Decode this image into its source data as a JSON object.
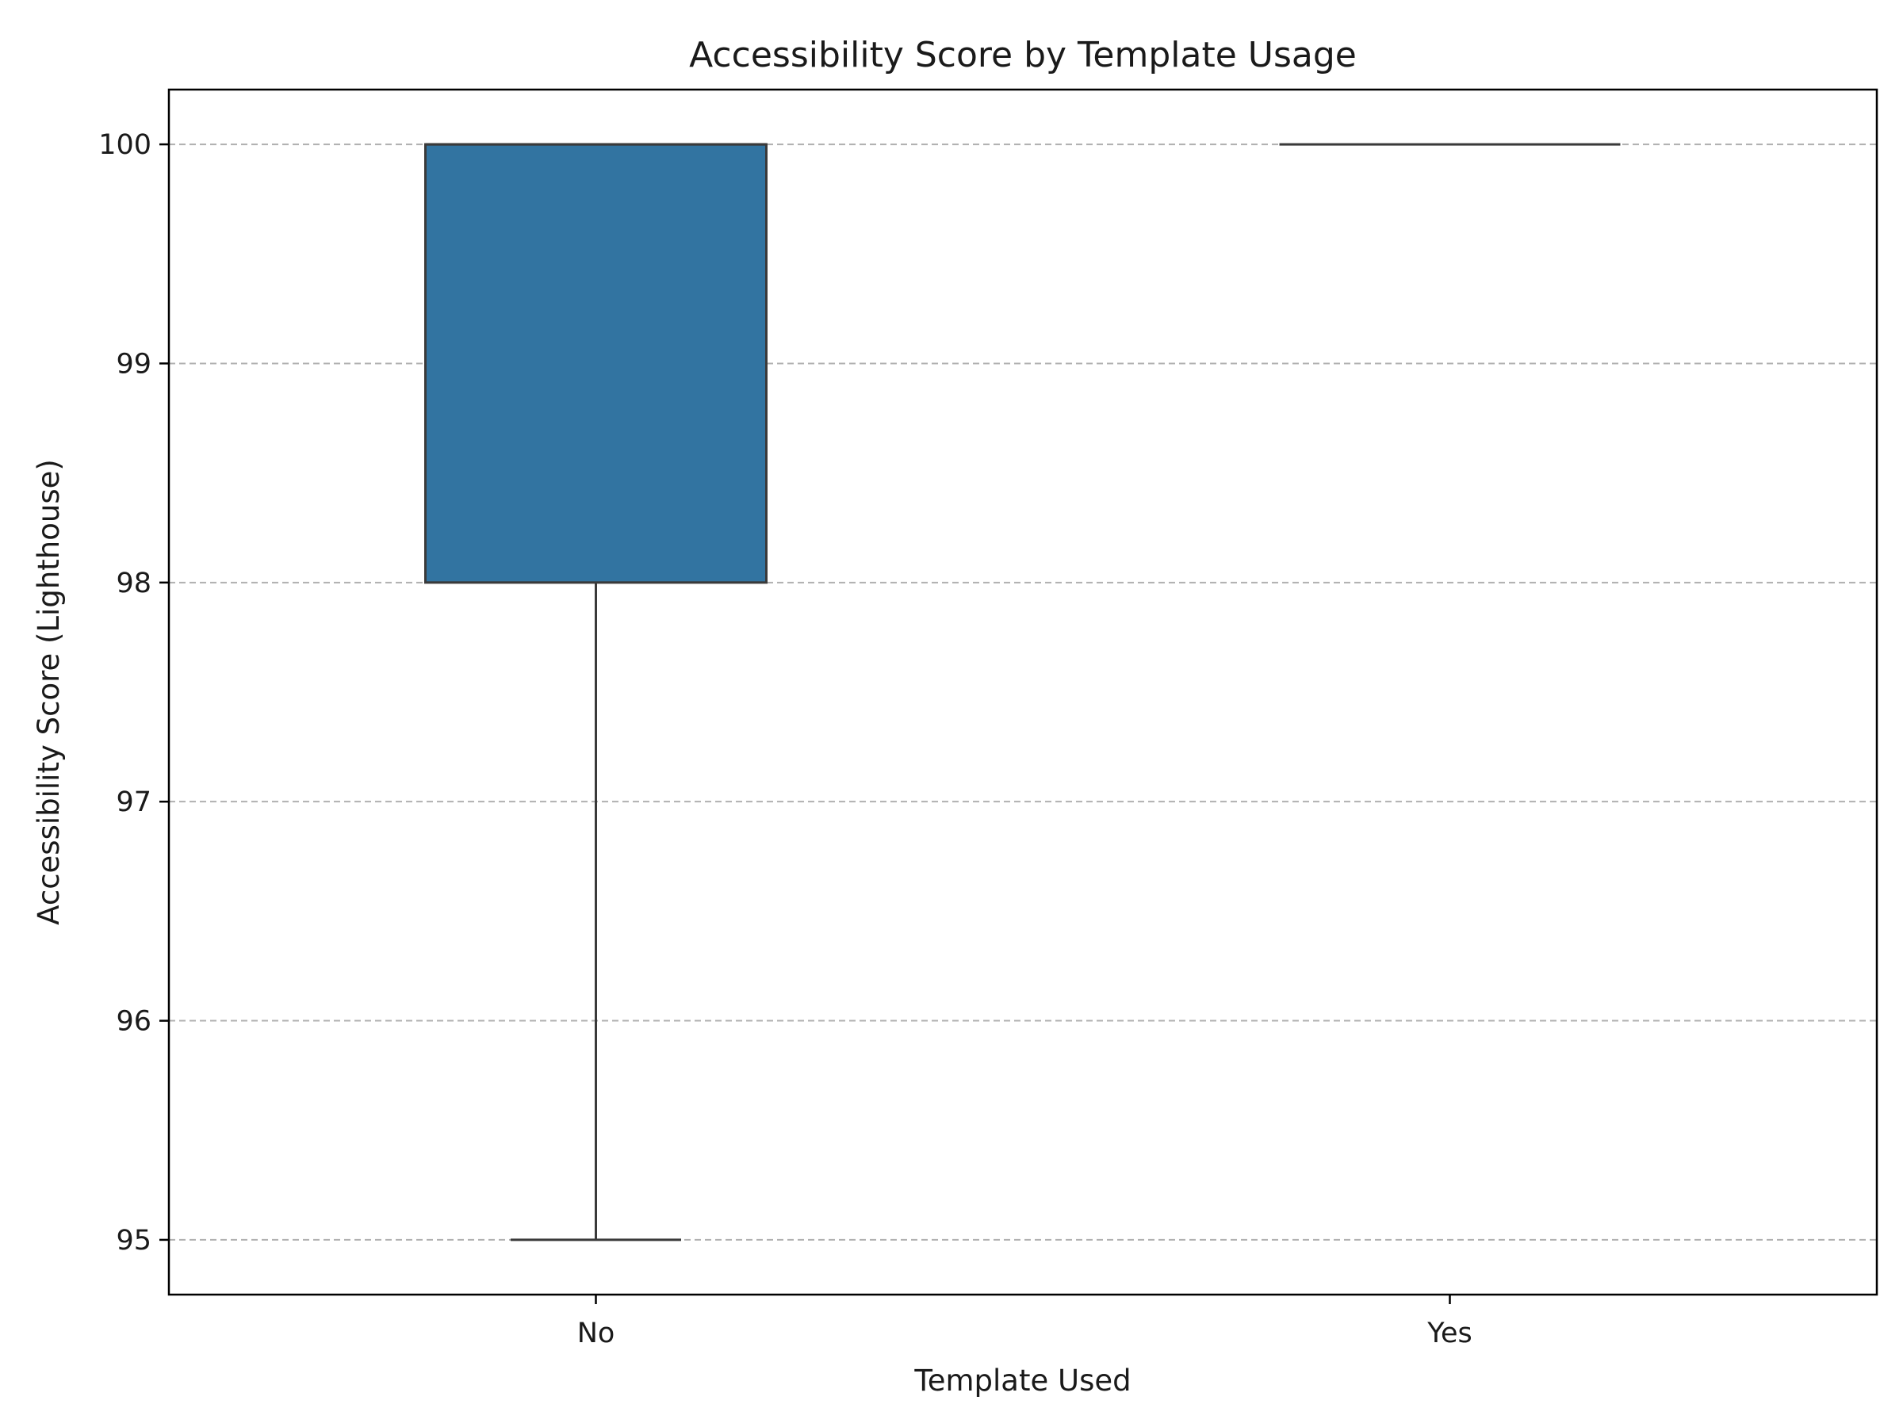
{
  "chart_data": {
    "type": "box",
    "title": "Accessibility Score by Template Usage",
    "xlabel": "Template Used",
    "ylabel": "Accessibility Score (Lighthouse)",
    "categories": [
      "No",
      "Yes"
    ],
    "ylim": [
      94.75,
      100.25
    ],
    "yticks": [
      95,
      96,
      97,
      98,
      99,
      100
    ],
    "grid": "y-dashed",
    "box_color": "#3274a1",
    "boxes": [
      {
        "category": "No",
        "whisker_low": 95,
        "q1": 98,
        "median": 100,
        "q3": 100,
        "whisker_high": 100
      },
      {
        "category": "Yes",
        "whisker_low": 100,
        "q1": 100,
        "median": 100,
        "q3": 100,
        "whisker_high": 100
      }
    ]
  }
}
